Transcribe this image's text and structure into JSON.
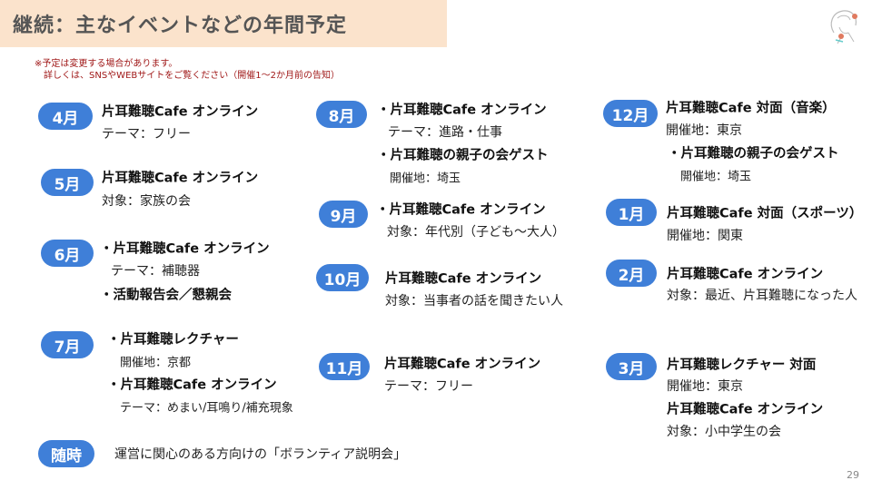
{
  "title": "継続：主なイベントなどの年間予定",
  "notes": [
    "※予定は変更する場合があります。",
    "詳しくは、SNSやWEBサイトをご覧ください（開催1〜2か月前の告知）"
  ],
  "accent_color": "#3f7fd8",
  "header_bg_color": "#fbe3cc",
  "note_color": "#a01818",
  "months": [
    {
      "badge": "4月",
      "lines": [
        {
          "text": "片耳難聴Cafe オンライン",
          "bold": true
        },
        {
          "text": "テーマ：フリー"
        }
      ]
    },
    {
      "badge": "5月",
      "lines": [
        {
          "text": "片耳難聴Cafe オンライン",
          "bold": true
        },
        {
          "text": "対象：家族の会"
        }
      ]
    },
    {
      "badge": "6月",
      "lines": [
        {
          "text": "・片耳難聴Cafe オンライン",
          "bold": true
        },
        {
          "text": "テーマ：補聴器"
        },
        {
          "text": "・活動報告会／懇親会",
          "bold": true
        }
      ]
    },
    {
      "badge": "7月",
      "lines": [
        {
          "text": "・片耳難聴レクチャー",
          "bold": true
        },
        {
          "text": "開催地：京都"
        },
        {
          "text": "・片耳難聴Cafe オンライン",
          "bold": true
        },
        {
          "text": "テーマ：めまい/耳鳴り/補充現象"
        }
      ]
    },
    {
      "badge": "8月",
      "lines": [
        {
          "text": "・片耳難聴Cafe オンライン",
          "bold": true
        },
        {
          "text": "テーマ：進路・仕事"
        },
        {
          "text": "・片耳難聴の親子の会ゲスト",
          "bold": true
        },
        {
          "text": "開催地：埼玉"
        }
      ]
    },
    {
      "badge": "9月",
      "lines": [
        {
          "text": "・片耳難聴Cafe オンライン",
          "bold": true
        },
        {
          "text": "対象：年代別（子ども〜大人）"
        }
      ]
    },
    {
      "badge": "10月",
      "lines": [
        {
          "text": "片耳難聴Cafe オンライン",
          "bold": true
        },
        {
          "text": "対象：当事者の話を聞きたい人"
        }
      ]
    },
    {
      "badge": "11月",
      "lines": [
        {
          "text": "片耳難聴Cafe オンライン",
          "bold": true
        },
        {
          "text": "テーマ：フリー"
        }
      ]
    },
    {
      "badge": "12月",
      "lines": [
        {
          "text": "片耳難聴Cafe 対面（音楽）",
          "bold": true
        },
        {
          "text": "開催地：東京"
        },
        {
          "text": "・片耳難聴の親子の会ゲスト",
          "bold": true
        },
        {
          "text": "開催地：埼玉"
        }
      ]
    },
    {
      "badge": "1月",
      "lines": [
        {
          "text": "片耳難聴Cafe 対面（スポーツ）",
          "bold": true
        },
        {
          "text": "開催地：関東"
        }
      ]
    },
    {
      "badge": "2月",
      "lines": [
        {
          "text": "片耳難聴Cafe オンライン",
          "bold": true
        },
        {
          "text": "対象：最近、片耳難聴になった人"
        }
      ]
    },
    {
      "badge": "3月",
      "lines": [
        {
          "text": "片耳難聴レクチャー 対面",
          "bold": true
        },
        {
          "text": "開催地：東京"
        },
        {
          "text": "片耳難聴Cafe オンライン",
          "bold": true
        },
        {
          "text": "対象：小中学生の会"
        }
      ]
    },
    {
      "badge": "随時",
      "lines": [
        {
          "text": "運営に関心のある方向けの「ボランティア説明会」"
        }
      ]
    }
  ],
  "page_number": "29"
}
